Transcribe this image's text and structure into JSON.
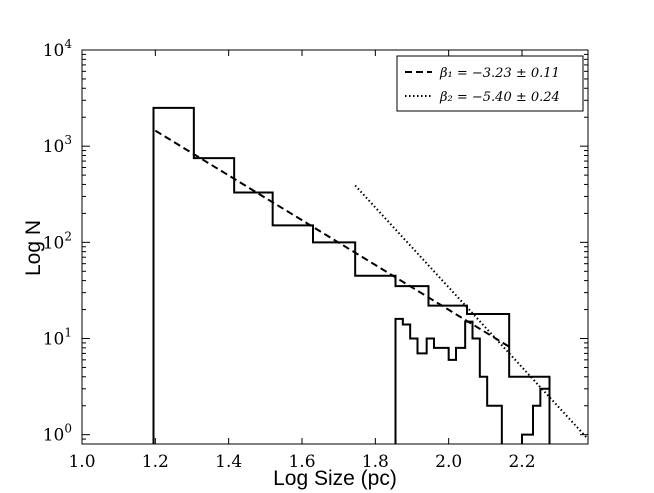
{
  "chart_data": {
    "type": "histogram",
    "xlabel": "Log Size (pc)",
    "ylabel": "Log N",
    "xlim": [
      1.0,
      2.38
    ],
    "ylim": [
      0.8,
      10000
    ],
    "y_scale": "log",
    "grid": false,
    "legend_position": "top-right",
    "x_ticks": [
      "1.0",
      "1.2",
      "1.4",
      "1.6",
      "1.8",
      "2.0",
      "2.2"
    ],
    "x_tick_values": [
      1.0,
      1.2,
      1.4,
      1.6,
      1.8,
      2.0,
      2.2
    ],
    "y_ticks": [
      {
        "value": 1,
        "base": "10",
        "exp": "0"
      },
      {
        "value": 10,
        "base": "10",
        "exp": "1"
      },
      {
        "value": 100,
        "base": "10",
        "exp": "2"
      },
      {
        "value": 1000,
        "base": "10",
        "exp": "3"
      },
      {
        "value": 10000,
        "base": "10",
        "exp": "4"
      }
    ],
    "histograms": [
      {
        "edges": [
          1.195,
          1.305,
          1.415,
          1.52,
          1.63,
          1.745,
          1.855,
          1.945,
          2.05,
          2.165,
          2.275
        ],
        "counts": [
          2500,
          750,
          330,
          150,
          100,
          45,
          35,
          22,
          18,
          4
        ]
      },
      {
        "edges": [
          1.855,
          1.875,
          1.895,
          1.915,
          1.94,
          1.96,
          1.98,
          2.0,
          2.02,
          2.045,
          2.065,
          2.085,
          2.105,
          2.125,
          2.145
        ],
        "counts": [
          16,
          14,
          10,
          7,
          10,
          8,
          8,
          6,
          8,
          15,
          10,
          4,
          2,
          2
        ]
      },
      {
        "edges": [
          2.2,
          2.23,
          2.25,
          2.275
        ],
        "counts": [
          1,
          2,
          3
        ]
      }
    ],
    "fits": [
      {
        "label": "β₁ = −3.23 ± 0.11",
        "style": "dashed",
        "x": [
          1.2,
          2.17
        ],
        "y": [
          1450,
          8
        ]
      },
      {
        "label": "β₂ = −5.40 ± 0.24",
        "style": "dotted",
        "x": [
          1.745,
          2.38
        ],
        "y": [
          390,
          0.9
        ]
      }
    ]
  }
}
